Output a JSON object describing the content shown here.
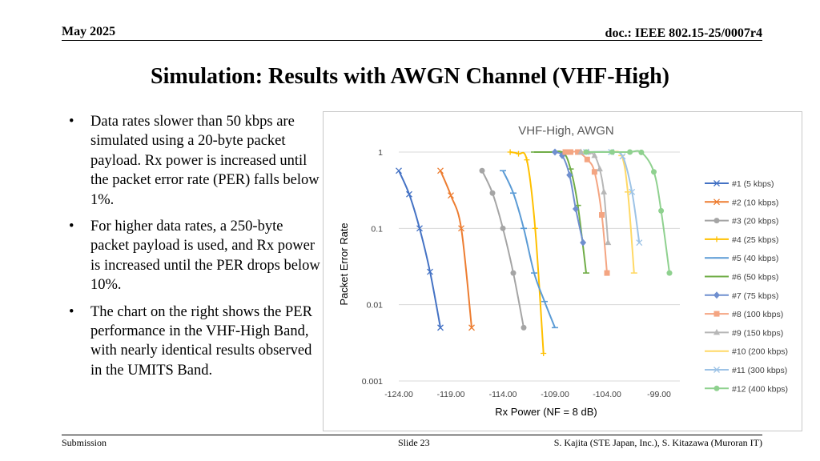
{
  "header": {
    "date": "May 2025",
    "doc_id": "doc.: IEEE 802.15-25/0007r4"
  },
  "title": "Simulation: Results with AWGN Channel (VHF-High)",
  "bullets": [
    "Data rates slower than 50 kbps are simulated using a 20-byte packet payload. Rx power is increased until the packet error rate (PER) falls below 1%.",
    "For higher data rates, a 250-byte packet payload is used, and Rx power is increased until the PER drops below 10%.",
    "The chart on the right shows the PER performance in the VHF-High Band, with nearly identical results observed in the UMITS Band."
  ],
  "footer": {
    "left": "Submission",
    "center": "Slide 23",
    "right": "S. Kajita (STE Japan, Inc.), S. Kitazawa (Muroran IT)"
  },
  "chart_data": {
    "type": "line",
    "title": "VHF-High, AWGN",
    "xlabel": "Rx Power (NF = 8 dB)",
    "ylabel": "Packet Error Rate",
    "xlim": [
      -124,
      -97
    ],
    "ylim": [
      0.001,
      1
    ],
    "y_scale": "log",
    "x_ticks": [
      -124,
      -119,
      -114,
      -109,
      -104,
      -99
    ],
    "x_tick_labels": [
      "-124.00",
      "-119.00",
      "-114.00",
      "-109.00",
      "-104.00",
      "-99.00"
    ],
    "y_ticks": [
      0.001,
      0.01,
      0.1,
      1
    ],
    "y_tick_labels": [
      "0.001",
      "0.01",
      "0.1",
      "1"
    ],
    "grid": "horizontal",
    "legend_position": "right",
    "series": [
      {
        "name": "#1 (5 kbps)",
        "color": "#4472c4",
        "marker": "x",
        "x": [
          -124,
          -123,
          -122,
          -121,
          -120
        ],
        "y": [
          0.57,
          0.28,
          0.1,
          0.027,
          0.005
        ]
      },
      {
        "name": "#2 (10 kbps)",
        "color": "#ed7d31",
        "marker": "x",
        "x": [
          -120,
          -119,
          -118,
          -117
        ],
        "y": [
          0.57,
          0.27,
          0.1,
          0.005
        ]
      },
      {
        "name": "#3 (20 kbps)",
        "color": "#a5a5a5",
        "marker": "circle",
        "x": [
          -116,
          -115,
          -114,
          -113,
          -112
        ],
        "y": [
          0.57,
          0.29,
          0.1,
          0.026,
          0.005
        ]
      },
      {
        "name": "#4 (25 kbps)",
        "color": "#ffc000",
        "marker": "plus",
        "x": [
          -113.3,
          -112.5,
          -111.7,
          -110.9,
          -110.1
        ],
        "y": [
          1,
          0.95,
          0.79,
          0.1,
          0.0023
        ]
      },
      {
        "name": "#5 (40 kbps)",
        "color": "#5b9bd5",
        "marker": "dash",
        "x": [
          -114,
          -113,
          -112,
          -111,
          -110,
          -109
        ],
        "y": [
          0.57,
          0.29,
          0.1,
          0.026,
          0.011,
          0.005
        ]
      },
      {
        "name": "#6 (50 kbps)",
        "color": "#70ad47",
        "marker": "dash",
        "x": [
          -111,
          -109.5,
          -108.2,
          -107.5,
          -106.8,
          -106.0
        ],
        "y": [
          1,
          1,
          0.98,
          0.6,
          0.2,
          0.026
        ]
      },
      {
        "name": "#7 (75 kbps)",
        "color": "#6f8fcf",
        "marker": "diamond",
        "x": [
          -109,
          -108.3,
          -107.6,
          -107,
          -106.3
        ],
        "y": [
          1,
          0.9,
          0.5,
          0.18,
          0.065
        ]
      },
      {
        "name": "#8 (100 kbps)",
        "color": "#f4a582",
        "marker": "square",
        "x": [
          -108,
          -107.5,
          -106.8,
          -105.9,
          -105.2,
          -104.5,
          -104.0
        ],
        "y": [
          1,
          1,
          1,
          0.8,
          0.55,
          0.15,
          0.026
        ]
      },
      {
        "name": "#9 (150 kbps)",
        "color": "#b7b7b7",
        "marker": "triangle",
        "x": [
          -106.5,
          -105.8,
          -105.2,
          -104.7,
          -104.3,
          -103.9
        ],
        "y": [
          1,
          1,
          0.9,
          0.6,
          0.3,
          0.065
        ]
      },
      {
        "name": "#10 (200 kbps)",
        "color": "#ffd966",
        "marker": "dash",
        "x": [
          -106,
          -103.7,
          -102.6,
          -102.0,
          -101.4
        ],
        "y": [
          1,
          1,
          0.9,
          0.3,
          0.026
        ]
      },
      {
        "name": "#11 (300 kbps)",
        "color": "#9dc3e6",
        "marker": "x",
        "x": [
          -106,
          -103.6,
          -102.5,
          -101.6,
          -100.9
        ],
        "y": [
          1,
          1,
          0.88,
          0.3,
          0.065
        ]
      },
      {
        "name": "#12 (400 kbps)",
        "color": "#8fd18f",
        "marker": "circle",
        "x": [
          -106,
          -103.5,
          -101.8,
          -100.7,
          -99.5,
          -98.8,
          -98.0
        ],
        "y": [
          1,
          1,
          1,
          0.99,
          0.55,
          0.17,
          0.026
        ]
      }
    ]
  }
}
